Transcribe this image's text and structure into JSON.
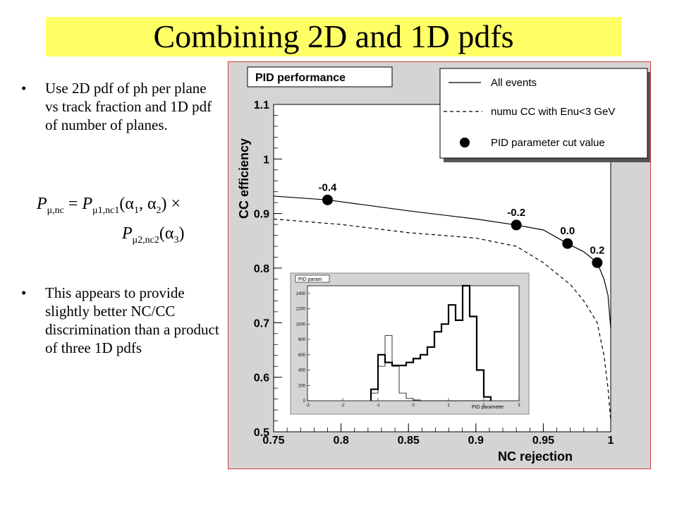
{
  "slide": {
    "title": "Combining 2D and 1D pdfs",
    "bullet_1": "Use 2D pdf of ph per plane vs track fraction and 1D pdf of number of planes.",
    "bullet_2": "This appears to provide slightly better NC/CC discrimination than a product of three 1D pdfs",
    "formula": {
      "lhs": "P",
      "lhs_sub": "μ,nc",
      "eq": " = ",
      "t1": "P",
      "t1_sub": "μ1,nc1",
      "t1_args": "(α",
      "a1": "1",
      "comma": ", α",
      "a2": "2",
      "t1_close": ") ×",
      "t2": "P",
      "t2_sub": "μ2,nc2",
      "t2_args": "(α",
      "a3": "3",
      "t2_close": ")"
    }
  },
  "chart_data": [
    {
      "type": "line",
      "title": "PID performance",
      "xlabel": "NC rejection",
      "ylabel": "CC efficiency",
      "xlim": [
        0.75,
        1.0
      ],
      "ylim": [
        0.5,
        1.1
      ],
      "xticks": [
        0.75,
        0.8,
        0.85,
        0.9,
        0.95,
        1.0
      ],
      "xtick_labels": [
        "0.75",
        "0.8",
        "0.85",
        "0.9",
        "0.95",
        "1"
      ],
      "yticks": [
        0.5,
        0.6,
        0.7,
        0.8,
        0.9,
        1.0,
        1.1
      ],
      "ytick_labels": [
        "0.5",
        "0.6",
        "0.7",
        "0.8",
        "0.9",
        "1",
        "1.1"
      ],
      "legend_position": "top-right",
      "series": [
        {
          "name": "All events",
          "style": "solid",
          "x": [
            0.75,
            0.79,
            0.85,
            0.9,
            0.93,
            0.95,
            0.968,
            0.98,
            0.99,
            0.995,
            0.998,
            1.0
          ],
          "y": [
            0.932,
            0.925,
            0.905,
            0.89,
            0.879,
            0.87,
            0.845,
            0.83,
            0.81,
            0.78,
            0.75,
            0.69
          ]
        },
        {
          "name": "numu CC with Enu<3 GeV",
          "style": "dashed",
          "x": [
            0.75,
            0.8,
            0.85,
            0.9,
            0.93,
            0.95,
            0.97,
            0.98,
            0.99,
            0.995,
            0.998,
            1.0
          ],
          "y": [
            0.89,
            0.88,
            0.865,
            0.855,
            0.84,
            0.81,
            0.77,
            0.74,
            0.7,
            0.64,
            0.58,
            0.52
          ]
        },
        {
          "name": "PID parameter cut value",
          "style": "markers",
          "x": [
            0.79,
            0.93,
            0.968,
            0.99
          ],
          "y": [
            0.925,
            0.879,
            0.845,
            0.81
          ],
          "labels": [
            "-0.4",
            "-0.2",
            "0.0",
            "0.2"
          ]
        }
      ]
    },
    {
      "type": "histogram",
      "title": "PID param",
      "xlabel": "PID parameter",
      "xlim": [
        -3,
        3
      ],
      "ylim": [
        0,
        1500
      ],
      "xticks": [
        -3,
        -2,
        -1,
        0,
        1,
        2,
        3
      ],
      "xtick_labels": [
        "-3",
        "-2",
        "-1",
        "0",
        "1",
        "2",
        "3"
      ],
      "yticks": [
        0,
        200,
        400,
        600,
        800,
        1000,
        1200,
        1400
      ],
      "ytick_labels": [
        "0",
        "200",
        "400",
        "600",
        "800",
        "1000",
        "1200",
        "1400"
      ],
      "bin_edges": [
        -1.2,
        -1.0,
        -0.8,
        -0.6,
        -0.4,
        -0.2,
        0.0,
        0.2,
        0.4,
        0.6,
        0.8,
        1.0,
        1.2,
        1.4,
        1.6,
        1.8,
        2.0,
        2.2
      ],
      "series": [
        {
          "style": "thin",
          "values": [
            100,
            450,
            850,
            450,
            100,
            30,
            10,
            0,
            0,
            0,
            0,
            0,
            0,
            0,
            0,
            0,
            0
          ]
        },
        {
          "style": "thick",
          "values": [
            150,
            600,
            500,
            460,
            460,
            500,
            550,
            600,
            700,
            900,
            1000,
            1250,
            1050,
            1500,
            1100,
            400,
            50
          ]
        }
      ]
    }
  ]
}
